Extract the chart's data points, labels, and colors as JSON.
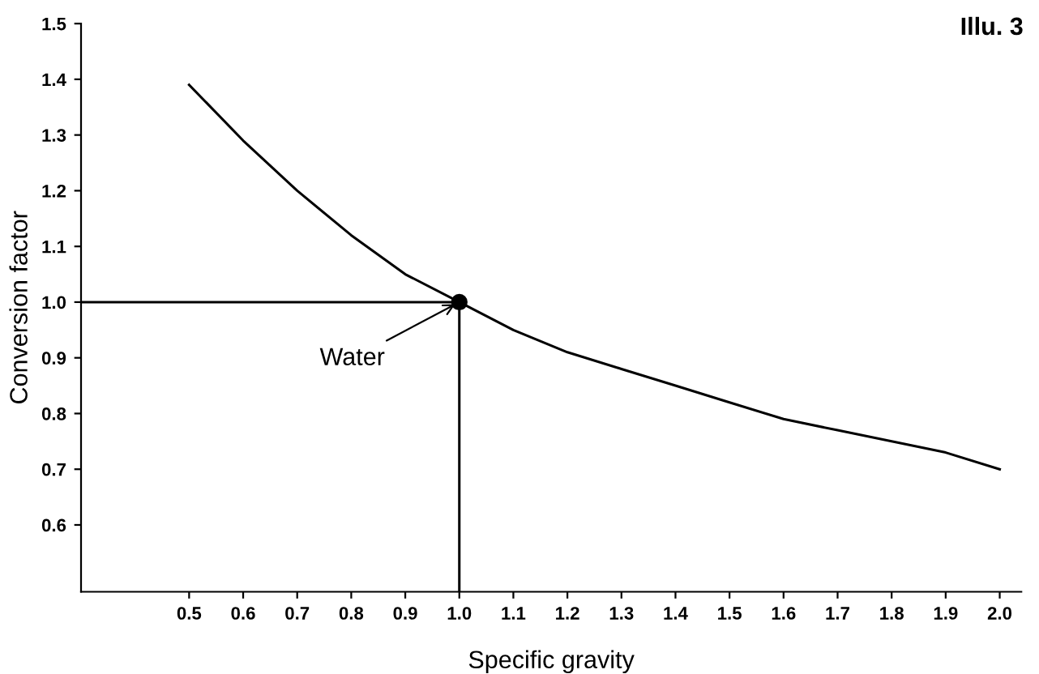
{
  "chart_data": {
    "type": "line",
    "xlabel": "Specific gravity",
    "ylabel": "Conversion factor",
    "xlim": [
      0.3,
      2.04
    ],
    "ylim": [
      0.48,
      1.5
    ],
    "xticks": [
      0.5,
      0.6,
      0.7,
      0.8,
      0.9,
      {
        "value": 1,
        "label": "1.0"
      },
      1.1,
      1.2,
      1.3,
      1.4,
      1.5,
      1.6,
      1.7,
      1.8,
      1.9,
      {
        "value": 2,
        "label": "2.0"
      }
    ],
    "yticks": [
      0.6,
      0.7,
      0.8,
      0.9,
      {
        "value": 1,
        "label": "1.0"
      },
      1.1,
      1.2,
      1.3,
      1.4,
      1.5
    ],
    "grid": false,
    "marker": "none",
    "line_style": "solid",
    "series": [
      {
        "color": "#000000",
        "x": [
          0.5,
          0.6,
          0.7,
          0.8,
          0.9,
          1.0,
          1.1,
          1.2,
          1.3,
          1.4,
          1.5,
          1.6,
          1.7,
          1.8,
          1.9,
          2.0
        ],
        "values": [
          1.39,
          1.29,
          1.2,
          1.12,
          1.05,
          1.0,
          0.95,
          0.91,
          0.88,
          0.85,
          0.82,
          0.79,
          0.77,
          0.75,
          0.73,
          0.7
        ]
      },
      {
        "color": "#000000",
        "x": [
          0.3,
          1.0
        ],
        "values": [
          1.0,
          1.0
        ]
      },
      {
        "color": "#000000",
        "x": [
          1.0,
          1.0
        ],
        "values": [
          1.0,
          0.48
        ]
      },
      {
        "type": "scatter",
        "marker": "circle",
        "color": "#000000",
        "x": [
          1.0
        ],
        "values": [
          1.0
        ]
      }
    ],
    "annotations": [
      {
        "text": "Water",
        "x": 1.0,
        "y": 1.0
      },
      "Illu. 3"
    ]
  }
}
